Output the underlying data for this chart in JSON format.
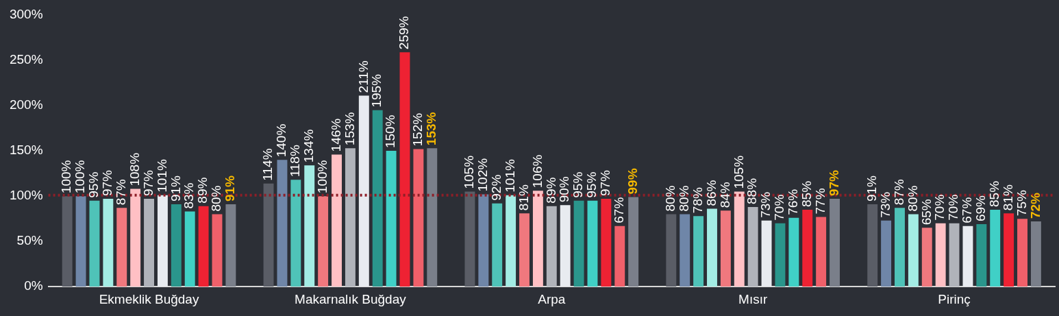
{
  "chart_data": {
    "type": "bar",
    "categories": [
      "Ekmeklik Buğday",
      "Makarnalık Buğday",
      "Arpa",
      "Mısır",
      "Pirinç"
    ],
    "ylim": [
      0,
      300
    ],
    "yticks": [
      {
        "value": 0,
        "label": "0%"
      },
      {
        "value": 50,
        "label": "50%"
      },
      {
        "value": 100,
        "label": "100%"
      },
      {
        "value": 150,
        "label": "150%"
      },
      {
        "value": 200,
        "label": "200%"
      },
      {
        "value": 250,
        "label": "250%"
      },
      {
        "value": 300,
        "label": "300%"
      }
    ],
    "grid": false,
    "legend": false,
    "ref_lines": [
      {
        "axis": "y",
        "value": 101,
        "color": "#8e1f28",
        "line_style": "dotted"
      }
    ],
    "series": [
      {
        "color": "#5a5d66",
        "values": [
          100,
          114,
          105,
          80,
          91
        ],
        "value_labels": [
          "100%",
          "114%",
          "105%",
          "80%",
          "91%"
        ]
      },
      {
        "color": "#6f86a8",
        "values": [
          100,
          140,
          102,
          80,
          73
        ],
        "value_labels": [
          "100%",
          "140%",
          "102%",
          "80%",
          "73%"
        ]
      },
      {
        "color": "#4fc3b8",
        "values": [
          95,
          118,
          92,
          78,
          87
        ],
        "value_labels": [
          "95%",
          "118%",
          "92%",
          "78%",
          "87%"
        ]
      },
      {
        "color": "#a3ece4",
        "values": [
          97,
          134,
          101,
          86,
          80
        ],
        "value_labels": [
          "97%",
          "134%",
          "101%",
          "86%",
          "80%"
        ]
      },
      {
        "color": "#f0787e",
        "values": [
          87,
          100,
          81,
          84,
          65
        ],
        "value_labels": [
          "87%",
          "100%",
          "81%",
          "84%",
          "65%"
        ]
      },
      {
        "color": "#ffc0c4",
        "values": [
          108,
          146,
          106,
          105,
          70
        ],
        "value_labels": [
          "108%",
          "146%",
          "106%",
          "105%",
          "70%"
        ]
      },
      {
        "color": "#b0b3ba",
        "values": [
          97,
          153,
          89,
          88,
          70
        ],
        "value_labels": [
          "97%",
          "153%",
          "89%",
          "88%",
          "70%"
        ]
      },
      {
        "color": "#e8ebf0",
        "values": [
          101,
          211,
          90,
          73,
          67
        ],
        "value_labels": [
          "101%",
          "211%",
          "90%",
          "73%",
          "67%"
        ]
      },
      {
        "color": "#2a968c",
        "values": [
          91,
          195,
          95,
          70,
          69
        ],
        "value_labels": [
          "91%",
          "195%",
          "95%",
          "70%",
          "69%"
        ]
      },
      {
        "color": "#40d0c6",
        "values": [
          83,
          150,
          95,
          76,
          85
        ],
        "value_labels": [
          "83%",
          "150%",
          "95%",
          "76%",
          "85%"
        ]
      },
      {
        "color": "#ee2233",
        "values": [
          89,
          259,
          97,
          85,
          81
        ],
        "value_labels": [
          "89%",
          "259%",
          "97%",
          "85%",
          "81%"
        ]
      },
      {
        "color": "#f0606a",
        "values": [
          80,
          152,
          67,
          77,
          75
        ],
        "value_labels": [
          "80%",
          "152%",
          "67%",
          "77%",
          "75%"
        ]
      },
      {
        "color": "#7a7f8a",
        "values": [
          91,
          153,
          99,
          97,
          72
        ],
        "value_labels": [
          "91%",
          "153%",
          "99%",
          "97%",
          "72%"
        ]
      }
    ]
  }
}
